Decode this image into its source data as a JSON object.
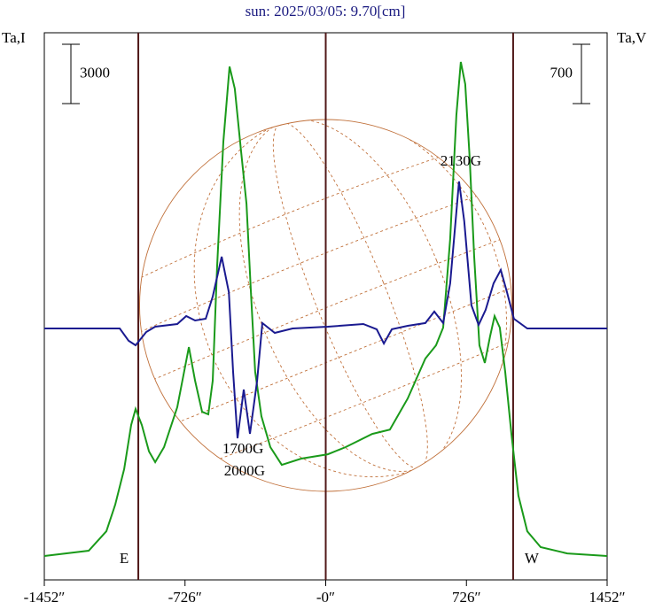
{
  "chart_data": {
    "type": "line",
    "title": "sun: 2025/03/05: 9.70[cm]",
    "ylabel": "Ta,I",
    "y2label": "Ta,V",
    "xlim": [
      -1452,
      1452
    ],
    "ylim": [
      -1210,
      26480
    ],
    "y2lim": [
      -2968,
      3490
    ],
    "xticks": [
      {
        "value": -1452,
        "label": "-1452″"
      },
      {
        "value": -726,
        "label": "-726″"
      },
      {
        "value": 0,
        "label": "-0″"
      },
      {
        "value": 726,
        "label": "726″"
      },
      {
        "value": 1452,
        "label": "1452″"
      }
    ],
    "vlines": [
      -967,
      0,
      967
    ],
    "scale_bars": [
      {
        "value": 3000,
        "axis": "y"
      },
      {
        "value": 700,
        "axis": "y2"
      }
    ],
    "series": [
      {
        "color": "#1a9a1a",
        "axis": "y",
        "x": [
          -1452,
          -1223,
          -1132,
          -1086,
          -1040,
          -1004,
          -981,
          -949,
          -912,
          -880,
          -834,
          -766,
          -706,
          -674,
          -638,
          -606,
          -583,
          -560,
          -528,
          -496,
          -469,
          -437,
          -409,
          -386,
          -364,
          -332,
          -286,
          -227,
          -126,
          11,
          103,
          240,
          331,
          423,
          514,
          569,
          606,
          642,
          674,
          697,
          720,
          743,
          766,
          793,
          821,
          848,
          871,
          898,
          926,
          958,
          994,
          1040,
          1109,
          1246,
          1452
        ],
        "values": [
          0,
          270,
          1250,
          2600,
          4400,
          6630,
          7440,
          6630,
          5290,
          4750,
          5510,
          7530,
          10570,
          8870,
          7300,
          7170,
          8870,
          14690,
          20970,
          24770,
          23650,
          20520,
          17830,
          13350,
          9320,
          7080,
          5510,
          4610,
          4930,
          5150,
          5510,
          6180,
          6400,
          7970,
          9990,
          10660,
          11560,
          16040,
          22310,
          25000,
          23880,
          20070,
          15140,
          10660,
          9770,
          11110,
          12140,
          11560,
          9320,
          6180,
          3050,
          1250,
          450,
          130,
          0
        ]
      },
      {
        "color": "#1a1a90",
        "axis": "y2",
        "x": [
          -1452,
          -1063,
          -1017,
          -981,
          -926,
          -880,
          -766,
          -720,
          -674,
          -619,
          -583,
          -537,
          -500,
          -478,
          -455,
          -423,
          -391,
          -354,
          -327,
          -263,
          -171,
          11,
          194,
          263,
          300,
          341,
          423,
          514,
          560,
          606,
          642,
          688,
          715,
          752,
          789,
          825,
          866,
          903,
          935,
          971,
          1040,
          1452
        ],
        "values": [
          0,
          0,
          -146,
          -199,
          -42,
          21,
          52,
          146,
          94,
          115,
          376,
          846,
          428,
          -512,
          -1296,
          -721,
          -1244,
          -617,
          63,
          -52,
          0,
          21,
          52,
          -10,
          -178,
          -10,
          31,
          63,
          199,
          63,
          533,
          1735,
          1264,
          272,
          42,
          219,
          533,
          690,
          428,
          115,
          0,
          0
        ]
      }
    ],
    "annotations": [
      {
        "text": "2130G",
        "x": 697,
        "y": 19940
      },
      {
        "text": "1700G",
        "x": -427,
        "y": 5380
      },
      {
        "text": "2000G",
        "x": -419,
        "y": 4260
      },
      {
        "text": "E",
        "x": -1040,
        "y": -180
      },
      {
        "text": "W",
        "x": 1063,
        "y": -180
      }
    ]
  }
}
